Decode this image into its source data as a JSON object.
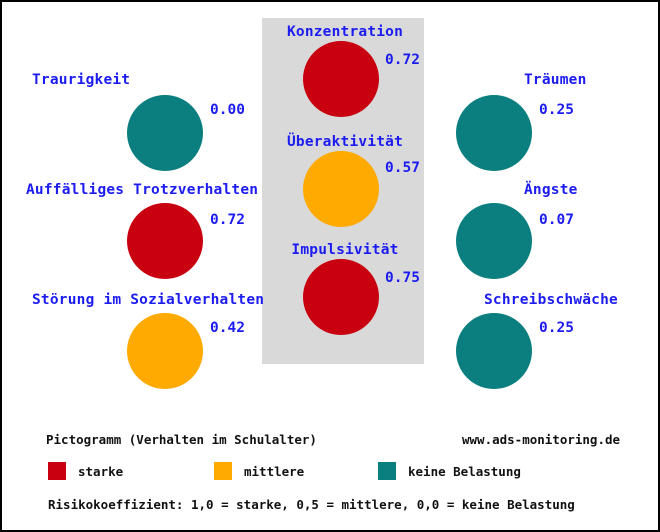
{
  "colors": {
    "starke": "#c8000f",
    "mittlere": "#ffaa00",
    "keine": "#0b7f7f",
    "panel": "#d9d9d9",
    "text": "#1c1cf0"
  },
  "chart_data": {
    "type": "pictogram",
    "title": "Pictogramm (Verhalten im Schulalter)",
    "items": [
      {
        "name": "Traurigkeit",
        "value": 0.0,
        "level": "keine"
      },
      {
        "name": "Auffälliges Trotzverhalten",
        "value": 0.72,
        "level": "starke"
      },
      {
        "name": "Störung im Sozialverhalten",
        "value": 0.42,
        "level": "mittlere"
      },
      {
        "name": "Konzentration",
        "value": 0.72,
        "level": "starke"
      },
      {
        "name": "Überaktivität",
        "value": 0.57,
        "level": "mittlere"
      },
      {
        "name": "Impulsivität",
        "value": 0.75,
        "level": "starke"
      },
      {
        "name": "Träumen",
        "value": 0.25,
        "level": "keine"
      },
      {
        "name": "Ängste",
        "value": 0.07,
        "level": "keine"
      },
      {
        "name": "Schreibschwäche",
        "value": 0.25,
        "level": "keine"
      }
    ],
    "legend": [
      {
        "key": "starke",
        "label": "starke"
      },
      {
        "key": "mittlere",
        "label": "mittlere"
      },
      {
        "key": "keine",
        "label": "keine Belastung"
      }
    ],
    "website": "www.ads-monitoring.de",
    "note": "Risikokoeffizient:  1,0 = starke,  0,5 = mittlere,  0,0 = keine Belastung"
  }
}
